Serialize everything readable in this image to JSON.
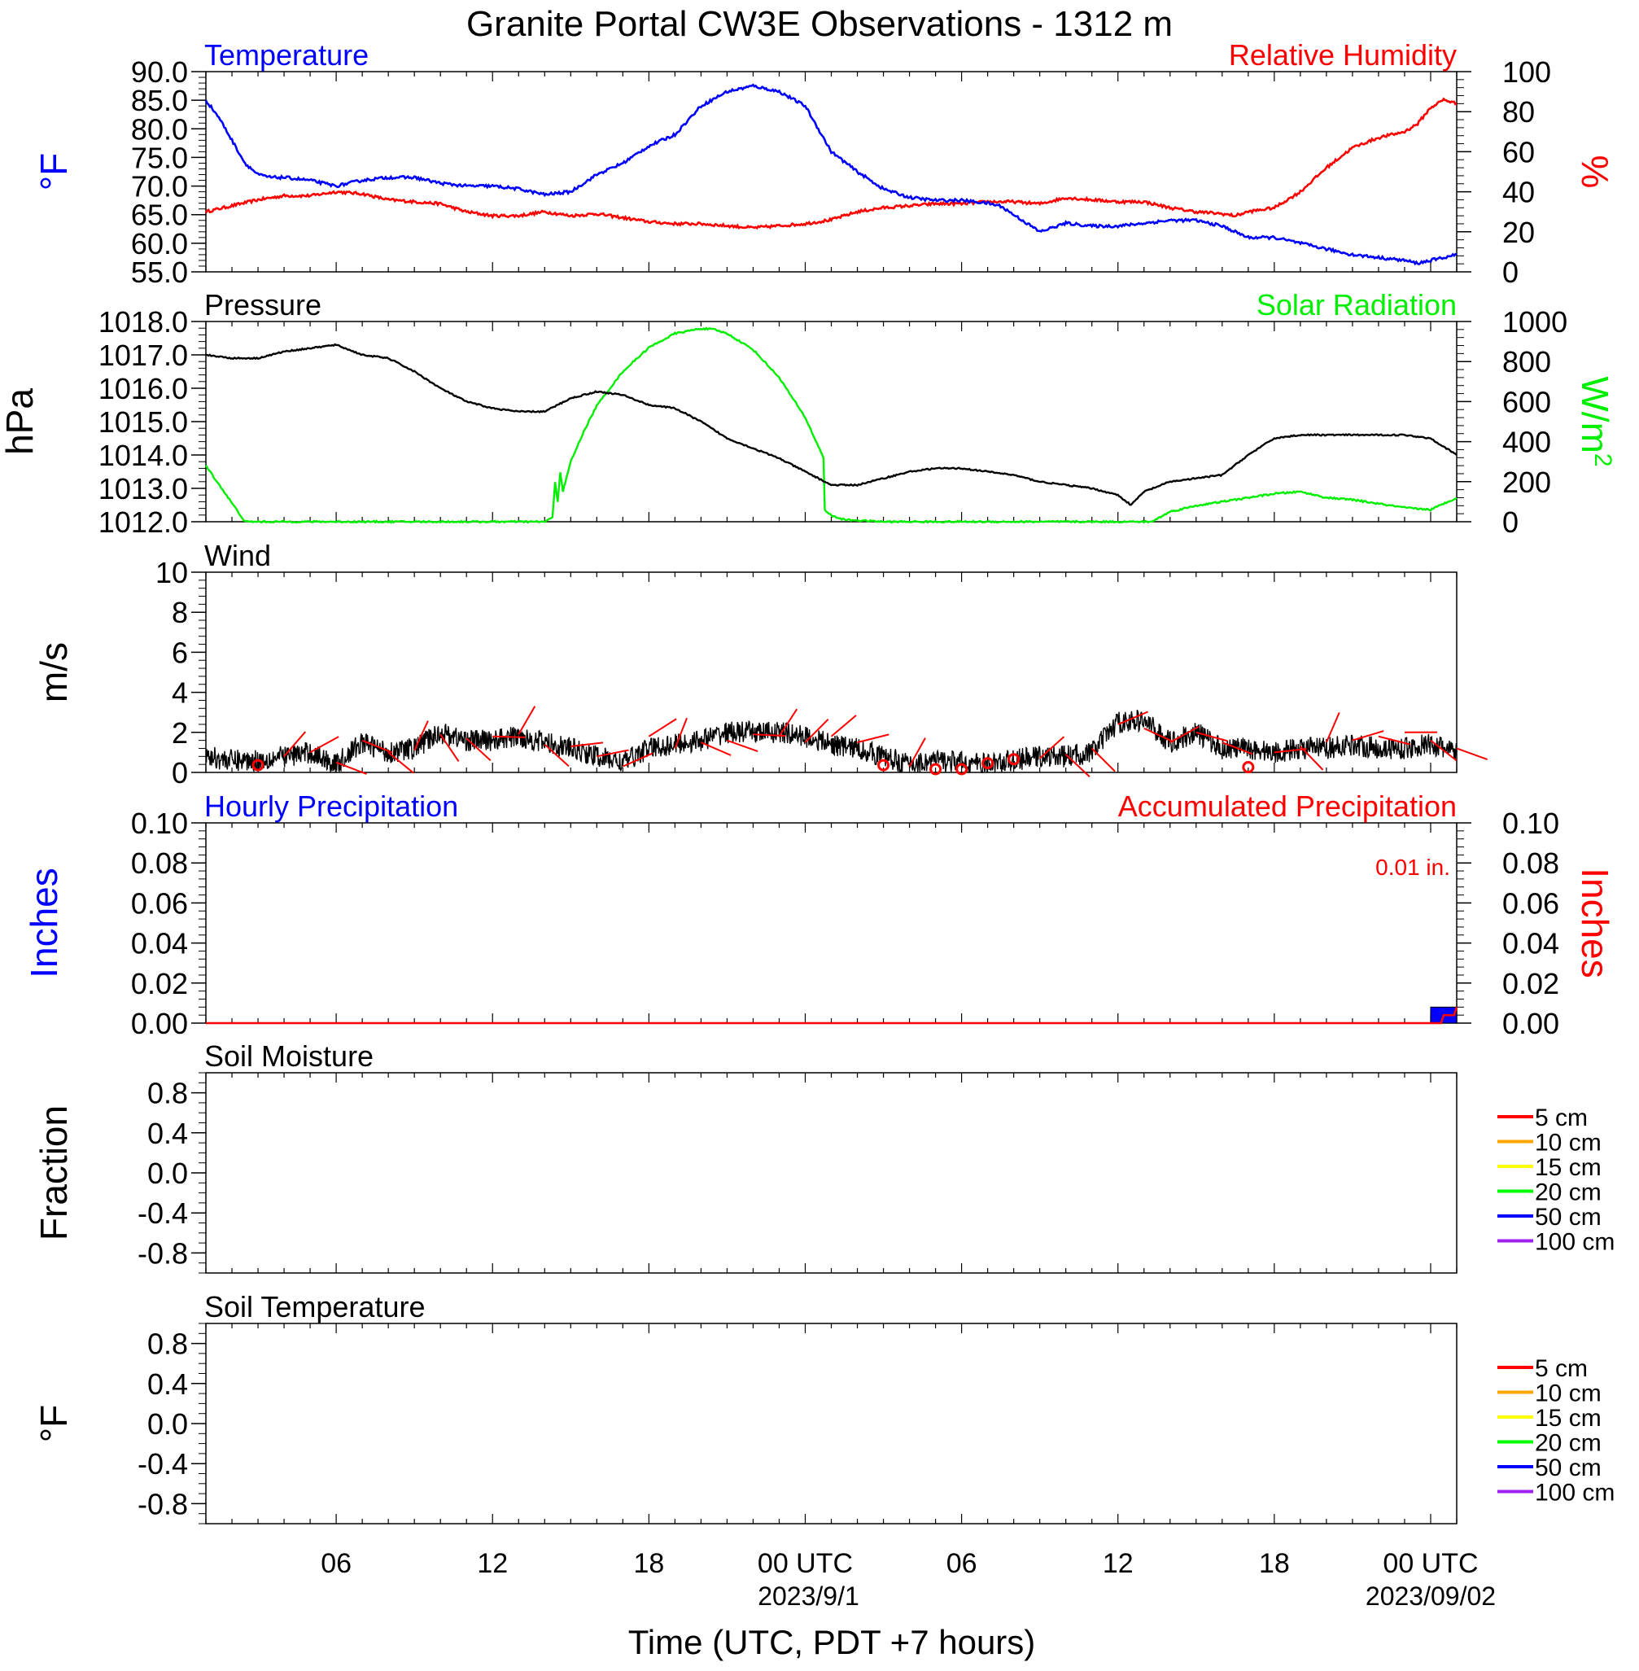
{
  "title": "Granite Portal CW3E Observations - 1312 m",
  "xlabel": "Time (UTC, PDT +7 hours)",
  "colors": {
    "temp": "#0000ff",
    "rh": "#ff0000",
    "pressure": "#000000",
    "solar": "#00ee00",
    "wind": "#000000",
    "barb": "#ff0000",
    "precip_hourly": "#0000ff",
    "precip_accum": "#ff0000"
  },
  "x_ticks": [
    {
      "hour": 6,
      "label": "06",
      "date": ""
    },
    {
      "hour": 12,
      "label": "12",
      "date": ""
    },
    {
      "hour": 18,
      "label": "18",
      "date": ""
    },
    {
      "hour": 24,
      "label": "00 UTC",
      "date": "2023/9/1"
    },
    {
      "hour": 30,
      "label": "06",
      "date": ""
    },
    {
      "hour": 36,
      "label": "12",
      "date": ""
    },
    {
      "hour": 42,
      "label": "18",
      "date": ""
    },
    {
      "hour": 48,
      "label": "00 UTC",
      "date": "2023/09/02"
    }
  ],
  "chart_data": [
    {
      "type": "line",
      "panel": "temperature_humidity",
      "title_left": "Temperature",
      "title_right": "Relative Humidity",
      "ylabel_left": "°F",
      "ylabel_right": "%",
      "ylim_left": [
        55,
        90
      ],
      "ylim_right": [
        0,
        100
      ],
      "yticks_left": [
        "90.0",
        "85.0",
        "80.0",
        "75.0",
        "70.0",
        "65.0",
        "60.0",
        "55.0"
      ],
      "yticks_right": [
        "100",
        "80",
        "60",
        "40",
        "20",
        "0"
      ],
      "series": [
        {
          "name": "Temperature",
          "axis": "left",
          "x": [
            1,
            1.5,
            2,
            2.5,
            3,
            3.5,
            4,
            5,
            6,
            7,
            8,
            9,
            10,
            11,
            12,
            13,
            14,
            15,
            16,
            17,
            18,
            19,
            20,
            21,
            22,
            23,
            24,
            25,
            26,
            27,
            28,
            29,
            30,
            31,
            31.5,
            32,
            33,
            34,
            35,
            36,
            37,
            38,
            39,
            40,
            41,
            42,
            43,
            44,
            45,
            46,
            47,
            47.5,
            48,
            48.5,
            49
          ],
          "values": [
            85,
            82,
            78,
            74,
            72,
            71.5,
            71.5,
            71,
            70,
            71,
            71.5,
            71.5,
            70.5,
            70,
            70,
            69.5,
            68.5,
            69,
            72,
            74,
            77,
            79,
            84,
            86.5,
            87.5,
            86.5,
            84,
            76,
            72.5,
            69.5,
            68,
            67.5,
            67.5,
            67,
            66.5,
            65,
            62,
            63.5,
            63,
            63,
            63.5,
            64,
            64,
            63,
            61,
            61,
            60,
            59,
            58,
            57.5,
            57,
            56.5,
            57,
            57.5,
            58
          ]
        },
        {
          "name": "Relative Humidity",
          "axis": "right",
          "x": [
            1,
            2,
            3,
            4,
            5,
            6,
            7,
            8,
            9,
            10,
            11,
            12,
            13,
            14,
            15,
            16,
            17,
            18,
            19,
            20,
            21,
            22,
            23,
            24,
            25,
            26,
            27,
            28,
            29,
            30,
            31,
            32,
            33,
            34,
            35,
            36,
            37,
            38,
            39,
            40,
            40.5,
            41,
            42,
            43,
            44,
            45,
            46,
            47,
            47.5,
            48,
            48.5,
            49
          ],
          "values": [
            30,
            33,
            36,
            38,
            38,
            40,
            39,
            36,
            35,
            34,
            30,
            28,
            28,
            30,
            28,
            29,
            27,
            25,
            24,
            24,
            23,
            22,
            23,
            24,
            26,
            30,
            32,
            33,
            34,
            34,
            35,
            35,
            34,
            37,
            36,
            35,
            35,
            32,
            30,
            29,
            28,
            30,
            32,
            40,
            52,
            62,
            67,
            70,
            74,
            82,
            86,
            84
          ]
        }
      ]
    },
    {
      "type": "line",
      "panel": "pressure_solar",
      "title_left": "Pressure",
      "title_right": "Solar Radiation",
      "ylabel_left": "hPa",
      "ylabel_right": "W/m",
      "ylabel_right_sup": "2",
      "ylim_left": [
        1012,
        1018
      ],
      "ylim_right": [
        0,
        1000
      ],
      "yticks_left": [
        "1018.0",
        "1017.0",
        "1016.0",
        "1015.0",
        "1014.0",
        "1013.0",
        "1012.0"
      ],
      "yticks_right": [
        "1000",
        "800",
        "600",
        "400",
        "200",
        "0"
      ],
      "series": [
        {
          "name": "Pressure",
          "axis": "left",
          "x": [
            1,
            2,
            3,
            4,
            5,
            6,
            7,
            8,
            9,
            10,
            11,
            12,
            13,
            14,
            15,
            16,
            17,
            18,
            19,
            20,
            21,
            22,
            23,
            24,
            25,
            26,
            27,
            28,
            29,
            30,
            31,
            32,
            33,
            34,
            35,
            36,
            36.5,
            37,
            38,
            39,
            40,
            41,
            42,
            43,
            44,
            45,
            46,
            47,
            48,
            49
          ],
          "values": [
            1017,
            1016.9,
            1016.9,
            1017.1,
            1017.2,
            1017.3,
            1017,
            1016.9,
            1016.5,
            1016,
            1015.6,
            1015.4,
            1015.3,
            1015.3,
            1015.7,
            1015.9,
            1015.8,
            1015.5,
            1015.4,
            1015,
            1014.5,
            1014.2,
            1013.9,
            1013.5,
            1013.1,
            1013.1,
            1013.3,
            1013.5,
            1013.6,
            1013.6,
            1013.5,
            1013.4,
            1013.2,
            1013.1,
            1013,
            1012.8,
            1012.5,
            1012.9,
            1013.2,
            1013.3,
            1013.4,
            1014,
            1014.5,
            1014.6,
            1014.6,
            1014.6,
            1014.6,
            1014.6,
            1014.5,
            1014
          ]
        },
        {
          "name": "Solar Radiation",
          "axis": "right",
          "x": [
            1,
            2.5,
            5,
            10,
            14,
            14.3,
            14.4,
            14.5,
            14.6,
            14.7,
            15,
            15.5,
            16,
            17,
            18,
            19,
            20,
            20.5,
            21,
            22,
            23,
            24,
            24.7,
            24.75,
            25,
            25.5,
            27,
            30,
            34,
            37.3,
            38,
            39,
            40,
            41,
            42,
            43,
            44,
            45,
            46,
            47,
            48,
            49
          ],
          "values": [
            280,
            0,
            0,
            0,
            0,
            20,
            200,
            100,
            250,
            150,
            300,
            450,
            580,
            750,
            870,
            940,
            965,
            960,
            940,
            860,
            720,
            520,
            320,
            60,
            30,
            10,
            0,
            0,
            0,
            0,
            50,
            80,
            100,
            120,
            140,
            150,
            120,
            110,
            90,
            70,
            60,
            120
          ]
        }
      ]
    },
    {
      "type": "line",
      "panel": "wind",
      "title_left": "Wind",
      "ylabel_left": "m/s",
      "ylim_left": [
        0,
        10
      ],
      "yticks_left": [
        "10",
        "8",
        "6",
        "4",
        "2",
        "0"
      ],
      "series": [
        {
          "name": "Wind",
          "axis": "left",
          "x": [
            1,
            2,
            3,
            4,
            5,
            6,
            7,
            8,
            9,
            10,
            11,
            12,
            13,
            14,
            15,
            16,
            17,
            18,
            19,
            20,
            21,
            22,
            23,
            24,
            25,
            26,
            27,
            28,
            29,
            30,
            31,
            32,
            33,
            34,
            35,
            36,
            37,
            38,
            39,
            40,
            41,
            42,
            43,
            44,
            45,
            46,
            47,
            48,
            49
          ],
          "values": [
            0.8,
            0.6,
            0.6,
            0.8,
            1.0,
            0.4,
            1.5,
            1.0,
            1.2,
            2.0,
            1.6,
            1.6,
            1.8,
            1.5,
            1.2,
            0.8,
            0.5,
            1.2,
            1.4,
            1.6,
            2.0,
            2.0,
            2.0,
            1.8,
            1.4,
            1.2,
            0.8,
            0.4,
            0.6,
            0.5,
            0.4,
            0.6,
            0.8,
            0.8,
            1.0,
            2.5,
            2.6,
            1.5,
            2.0,
            1.2,
            1.2,
            1.0,
            1.2,
            1.2,
            1.4,
            1.2,
            1.2,
            1.4,
            1.0
          ]
        },
        {
          "name": "Wind Barbs",
          "axis": "left",
          "x": [
            3,
            4,
            5,
            6,
            7,
            8,
            9,
            10,
            11,
            12,
            13,
            14,
            15,
            16,
            17,
            18,
            19,
            20,
            21,
            22,
            23,
            24,
            25,
            26,
            27,
            28,
            29,
            30,
            31,
            32,
            33,
            34,
            35,
            36,
            37,
            38,
            39,
            40,
            41,
            42,
            43,
            44,
            45,
            46,
            47,
            48,
            49
          ],
          "values": [
            0.2,
            0.8,
            1.0,
            0.5,
            1.6,
            1.0,
            1.1,
            1.9,
            1.7,
            1.8,
            1.9,
            1.4,
            1.3,
            0.8,
            0.3,
            1.8,
            1.2,
            1.5,
            1.6,
            1.9,
            1.8,
            1.5,
            1.8,
            1.5,
            0.2,
            0.3,
            0.0,
            0.0,
            0.3,
            0.5,
            0.7,
            0.9,
            1.2,
            2.4,
            2.2,
            1.5,
            2.0,
            1.5,
            0.1,
            1.0,
            1.3,
            1.5,
            1.6,
            1.8,
            2.0,
            1.6,
            1.2
          ]
        }
      ]
    },
    {
      "type": "bar",
      "panel": "precipitation",
      "title_left": "Hourly Precipitation",
      "title_right": "Accumulated Precipitation",
      "annotation": "0.01 in.",
      "ylabel_left": "Inches",
      "ylabel_right": "Inches",
      "ylim_left": [
        0,
        0.1
      ],
      "ylim_right": [
        0,
        0.1
      ],
      "yticks_left": [
        "0.10",
        "0.08",
        "0.06",
        "0.04",
        "0.02",
        "0.00"
      ],
      "yticks_right": [
        "0.10",
        "0.08",
        "0.06",
        "0.04",
        "0.02",
        "0.00"
      ],
      "series": [
        {
          "name": "Hourly Precipitation",
          "axis": "left",
          "x": [
            48,
            49
          ],
          "values": [
            0.008,
            0.008
          ]
        },
        {
          "name": "Accumulated Precipitation",
          "axis": "right",
          "x": [
            1,
            48.4,
            48.5,
            48.9,
            49
          ],
          "values": [
            0,
            0,
            0.004,
            0.004,
            0.008
          ]
        }
      ]
    },
    {
      "type": "line",
      "panel": "soil_moisture",
      "title_left": "Soil Moisture",
      "ylabel_left": "Fraction",
      "ylim_left": [
        -1,
        1
      ],
      "yticks_left": [
        "0.8",
        "0.4",
        "0.0",
        "-0.4",
        "-0.8"
      ],
      "legend": [
        {
          "label": "5 cm",
          "color": "#ff0000"
        },
        {
          "label": "10 cm",
          "color": "#ffa500"
        },
        {
          "label": "15 cm",
          "color": "#ffff00"
        },
        {
          "label": "20 cm",
          "color": "#00ff00"
        },
        {
          "label": "50 cm",
          "color": "#0000ff"
        },
        {
          "label": "100 cm",
          "color": "#a020f0"
        }
      ],
      "series": []
    },
    {
      "type": "line",
      "panel": "soil_temperature",
      "title_left": "Soil Temperature",
      "ylabel_left": "°F",
      "ylim_left": [
        -1,
        1
      ],
      "yticks_left": [
        "0.8",
        "0.4",
        "0.0",
        "-0.4",
        "-0.8"
      ],
      "legend": [
        {
          "label": "5 cm",
          "color": "#ff0000"
        },
        {
          "label": "10 cm",
          "color": "#ffa500"
        },
        {
          "label": "15 cm",
          "color": "#ffff00"
        },
        {
          "label": "20 cm",
          "color": "#00ff00"
        },
        {
          "label": "50 cm",
          "color": "#0000ff"
        },
        {
          "label": "100 cm",
          "color": "#a020f0"
        }
      ],
      "series": []
    }
  ]
}
